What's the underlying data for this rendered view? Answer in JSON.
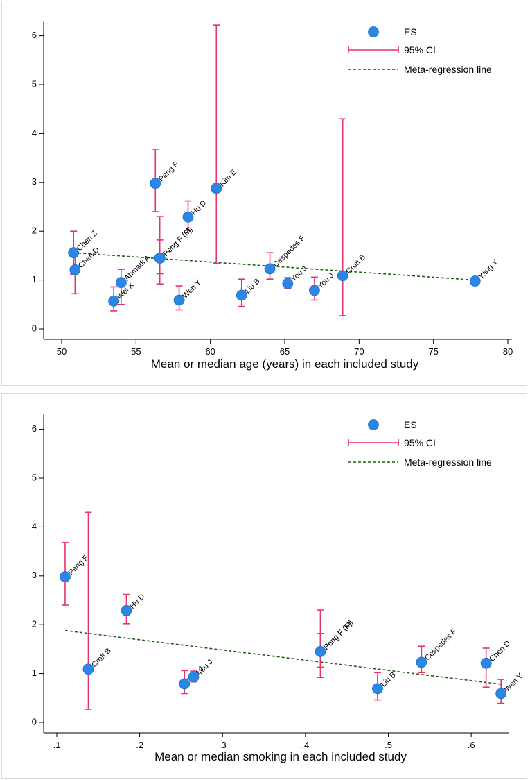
{
  "legend": {
    "es": "ES",
    "ci": "95% CI",
    "reg": "Meta-regression line"
  },
  "colors": {
    "point": "#2b86e6",
    "ci": "#e6336e",
    "regression": "#1f5e14",
    "axis": "#000000"
  },
  "chart_data": [
    {
      "type": "scatter",
      "title": "",
      "xlabel": "Mean or median age (years) in each included study",
      "ylabel": "",
      "xlim": [
        50,
        80
      ],
      "ylim": [
        0,
        6.3
      ],
      "x_ticks": [
        50,
        55,
        60,
        65,
        70,
        75,
        80
      ],
      "x_tick_labels": [
        "50",
        "55",
        "60",
        "65",
        "70",
        "75",
        "80"
      ],
      "y_ticks": [
        0,
        1,
        2,
        3,
        4,
        5,
        6
      ],
      "y_tick_labels": [
        "0",
        "1",
        "2",
        "3",
        "4",
        "5",
        "6"
      ],
      "regression": {
        "x": [
          50.8,
          77.8
        ],
        "y": [
          1.56,
          1.0
        ]
      },
      "points": [
        {
          "label": "Chen Z",
          "x": 50.8,
          "y": 1.56,
          "lo": 1.12,
          "hi": 2.0
        },
        {
          "label": "Chen D",
          "x": 50.9,
          "y": 1.21,
          "lo": 0.72,
          "hi": 1.52
        },
        {
          "label": "Wei X",
          "x": 53.5,
          "y": 0.57,
          "lo": 0.37,
          "hi": 0.86
        },
        {
          "label": "Ahmadi A",
          "x": 54.0,
          "y": 0.95,
          "lo": 0.5,
          "hi": 1.22
        },
        {
          "label": "Peng F",
          "x": 56.3,
          "y": 2.98,
          "lo": 2.4,
          "hi": 3.68
        },
        {
          "label": "Peng F (F)",
          "x": 56.6,
          "y": 1.45,
          "lo": 0.92,
          "hi": 2.3
        },
        {
          "label": "Peng F (M)",
          "x": 56.6,
          "y": 1.45,
          "lo": 1.13,
          "hi": 1.82
        },
        {
          "label": "Wen Y",
          "x": 57.9,
          "y": 0.59,
          "lo": 0.39,
          "hi": 0.88
        },
        {
          "label": "Hu D",
          "x": 58.5,
          "y": 2.29,
          "lo": 2.02,
          "hi": 2.62
        },
        {
          "label": "Kim E",
          "x": 60.4,
          "y": 2.88,
          "lo": 1.34,
          "hi": 6.22
        },
        {
          "label": "Liu B",
          "x": 62.1,
          "y": 0.69,
          "lo": 0.46,
          "hi": 1.02
        },
        {
          "label": "Cespedes F",
          "x": 64.0,
          "y": 1.23,
          "lo": 1.02,
          "hi": 1.56
        },
        {
          "label": "You J",
          "x": 65.2,
          "y": 0.93,
          "lo": 0.83,
          "hi": 1.05
        },
        {
          "label": "You J",
          "x": 67.0,
          "y": 0.79,
          "lo": 0.59,
          "hi": 1.06
        },
        {
          "label": "Croft B",
          "x": 68.9,
          "y": 1.09,
          "lo": 0.27,
          "hi": 4.3
        },
        {
          "label": "Yang Y",
          "x": 77.8,
          "y": 0.98,
          "lo": 0.98,
          "hi": 0.98
        }
      ]
    },
    {
      "type": "scatter",
      "title": "",
      "xlabel": "Mean or median smoking in each included study",
      "ylabel": "",
      "xlim": [
        0.1,
        0.64
      ],
      "ylim": [
        0,
        6.3
      ],
      "x_ticks": [
        0.1,
        0.2,
        0.3,
        0.4,
        0.5,
        0.6
      ],
      "x_tick_labels": [
        ".1",
        ".2",
        ".3",
        ".4",
        ".5",
        ".6"
      ],
      "y_ticks": [
        0,
        1,
        2,
        3,
        4,
        5,
        6
      ],
      "y_tick_labels": [
        "0",
        "1",
        "2",
        "3",
        "4",
        "5",
        "6"
      ],
      "regression": {
        "x": [
          0.11,
          0.636
        ],
        "y": [
          1.88,
          0.78
        ]
      },
      "points": [
        {
          "label": "Peng F",
          "x": 0.11,
          "y": 2.98,
          "lo": 2.4,
          "hi": 3.68
        },
        {
          "label": "Croft B",
          "x": 0.138,
          "y": 1.09,
          "lo": 0.27,
          "hi": 4.3
        },
        {
          "label": "Hu D",
          "x": 0.184,
          "y": 2.29,
          "lo": 2.02,
          "hi": 2.62
        },
        {
          "label": "You J",
          "x": 0.254,
          "y": 0.79,
          "lo": 0.59,
          "hi": 1.06
        },
        {
          "label": "You J",
          "x": 0.265,
          "y": 0.93,
          "lo": 0.83,
          "hi": 1.05
        },
        {
          "label": "Peng F (F)",
          "x": 0.418,
          "y": 1.45,
          "lo": 0.92,
          "hi": 2.3
        },
        {
          "label": "Peng F (M)",
          "x": 0.418,
          "y": 1.45,
          "lo": 1.13,
          "hi": 1.82
        },
        {
          "label": "Liu B",
          "x": 0.487,
          "y": 0.69,
          "lo": 0.46,
          "hi": 1.02
        },
        {
          "label": "Cespedes F",
          "x": 0.54,
          "y": 1.23,
          "lo": 1.02,
          "hi": 1.56
        },
        {
          "label": "Chen D",
          "x": 0.618,
          "y": 1.21,
          "lo": 0.72,
          "hi": 1.52
        },
        {
          "label": "Wen Y",
          "x": 0.636,
          "y": 0.59,
          "lo": 0.39,
          "hi": 0.88
        }
      ]
    }
  ]
}
